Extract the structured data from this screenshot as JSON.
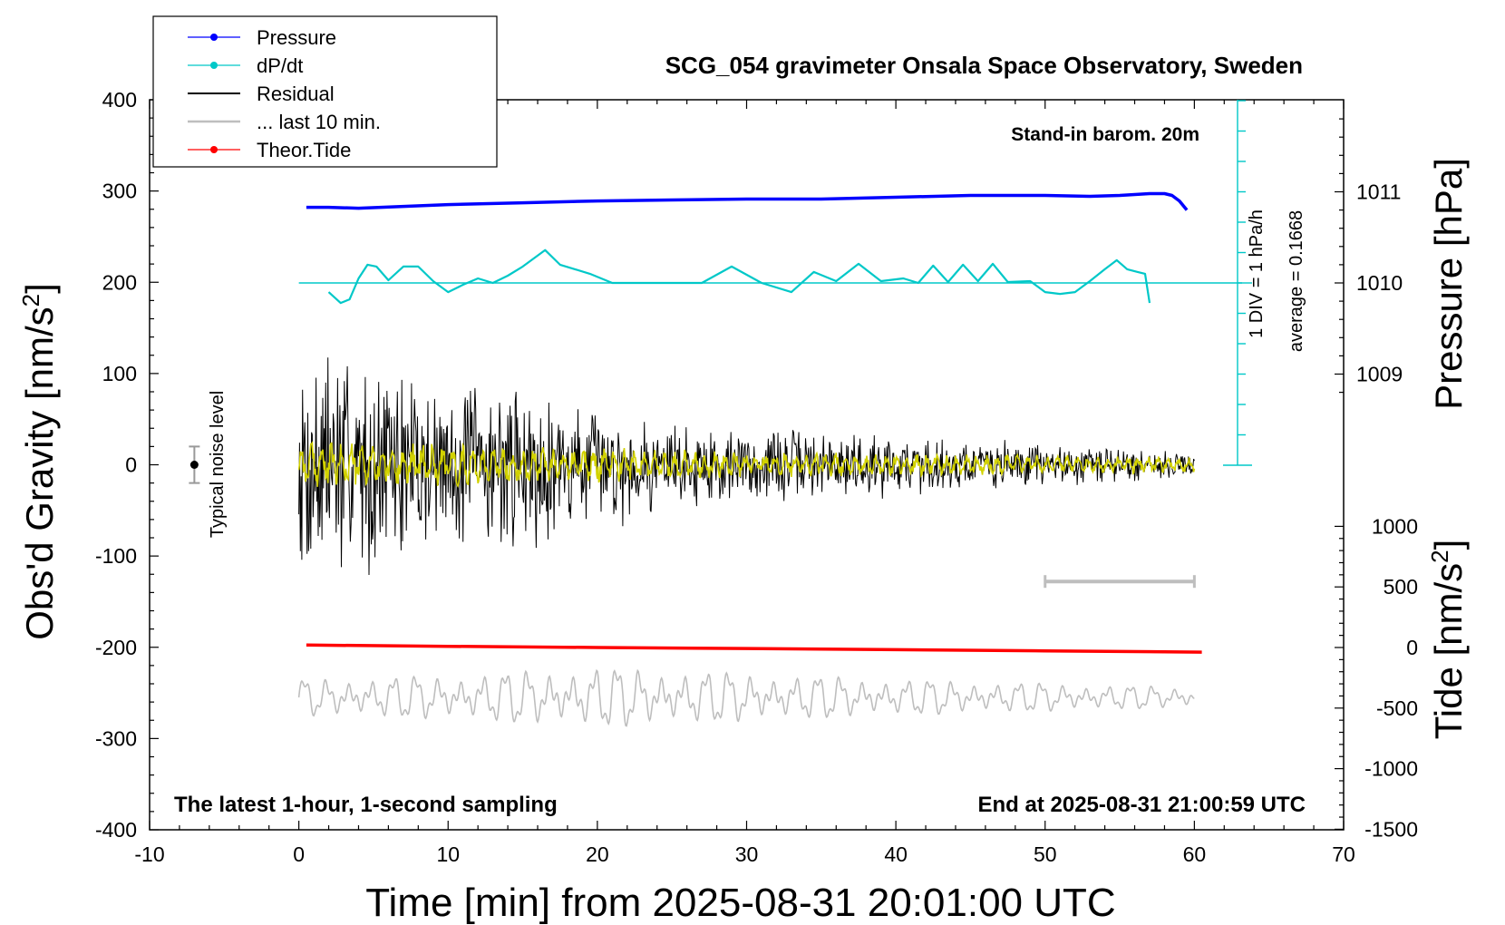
{
  "chart_data": {
    "type": "line",
    "title": "SCG_054 gravimeter Onsala Space Observatory, Sweden",
    "xlabel": "Time [min] from 2025-08-31 20:01:00 UTC",
    "ylabel_main": "Obs'd Gravity [nm/s",
    "ylabel_pressure": "Pressure [hPa]",
    "ylabel_tide": "Tide [nm/s",
    "unit_superscript": "2",
    "xlim": [
      -10,
      70
    ],
    "ylim": [
      -400,
      400
    ],
    "x_ticks": [
      "-10",
      "0",
      "10",
      "20",
      "30",
      "40",
      "50",
      "60",
      "70"
    ],
    "y_ticks": [
      "-400",
      "-300",
      "-200",
      "-100",
      "0",
      "100",
      "200",
      "300",
      "400"
    ],
    "pressure_ticks": [
      {
        "label": "1009",
        "value": 1009
      },
      {
        "label": "1010",
        "value": 1010
      },
      {
        "label": "1011",
        "value": 1011
      }
    ],
    "tide_ticks": [
      {
        "label": "1000",
        "value": 1000
      },
      {
        "label": "500",
        "value": 500
      },
      {
        "label": "0",
        "value": 0
      },
      {
        "label": "-500",
        "value": -500
      },
      {
        "label": "-1000",
        "value": -1000
      },
      {
        "label": "-1500",
        "value": -1500
      }
    ],
    "annotations": {
      "stand_in": "Stand-in barom. 20m",
      "div_label": "1 DIV = 1 hPa/h",
      "average_label": "average = 0.1668",
      "noise_label": "Typical noise level",
      "bottom_left": "The latest 1-hour, 1-second sampling",
      "bottom_right": "End at 2025-08-31 21:00:59 UTC"
    },
    "legend_position": "top-left",
    "legend": [
      {
        "name": "Pressure",
        "color": "#0000ff",
        "marker": true
      },
      {
        "name": "dP/dt",
        "color": "#00c8c8",
        "marker": true
      },
      {
        "name": "Residual",
        "color": "#000000",
        "marker": false
      },
      {
        "name": "... last 10 min.",
        "color": "#bebebe",
        "marker": false
      },
      {
        "name": "Theor.Tide",
        "color": "#ff0000",
        "marker": true
      }
    ],
    "series": [
      {
        "name": "Pressure",
        "color": "#0000ff",
        "axis": "pressure_hPa",
        "x": [
          0.5,
          2,
          4,
          7,
          10,
          15,
          20,
          25,
          30,
          35,
          40,
          45,
          48,
          50,
          53,
          55,
          57,
          58,
          58.5,
          59,
          59.5
        ],
        "values": [
          1010.83,
          1010.83,
          1010.82,
          1010.84,
          1010.86,
          1010.88,
          1010.9,
          1010.91,
          1010.92,
          1010.92,
          1010.94,
          1010.96,
          1010.96,
          1010.96,
          1010.95,
          1010.96,
          1010.98,
          1010.98,
          1010.96,
          1010.9,
          1010.8
        ]
      },
      {
        "name": "dP/dt",
        "color": "#00c8c8",
        "axis": "dPdt_hPa_per_h",
        "baseline": 1010.0,
        "x": [
          2,
          2.8,
          3.4,
          4,
          4.6,
          5.2,
          6,
          7,
          8,
          9,
          10,
          11,
          12,
          13,
          14,
          15,
          16.5,
          17.5,
          18.5,
          19.5,
          21,
          23,
          25,
          27,
          29,
          31,
          33,
          34.5,
          36,
          37.5,
          39,
          40.5,
          41.5,
          42.5,
          43.5,
          44.5,
          45.5,
          46.5,
          47.5,
          49,
          50,
          51,
          52,
          53,
          54,
          54.8,
          55.5,
          56.2,
          56.7,
          57
        ],
        "values": [
          -0.1,
          -0.22,
          -0.18,
          0.05,
          0.2,
          0.18,
          0.03,
          0.18,
          0.18,
          0.02,
          -0.1,
          -0.02,
          0.05,
          0.0,
          0.08,
          0.18,
          0.36,
          0.2,
          0.15,
          0.1,
          0.0,
          0.0,
          0.0,
          0.0,
          0.18,
          0.0,
          -0.1,
          0.12,
          0.02,
          0.21,
          0.02,
          0.05,
          0.0,
          0.19,
          0.01,
          0.2,
          0.02,
          0.21,
          0.01,
          0.02,
          -0.1,
          -0.12,
          -0.1,
          0.02,
          0.15,
          0.25,
          0.15,
          0.12,
          0.1,
          -0.22
        ]
      },
      {
        "name": "Residual",
        "color": "#000000",
        "axis": "gravity_nm_s2",
        "x": [
          0,
          1,
          2,
          3,
          4,
          5,
          6,
          7,
          8,
          9,
          10,
          11,
          12,
          13,
          14,
          15,
          16,
          17,
          18,
          19,
          20,
          21,
          22,
          23,
          24,
          25,
          26,
          27,
          28,
          29,
          30,
          31,
          32,
          33,
          34,
          35,
          36,
          37,
          38,
          39,
          40,
          41,
          42,
          43,
          44,
          45,
          46,
          47,
          48,
          49,
          50,
          51,
          52,
          53,
          54,
          55,
          56,
          57,
          58,
          59,
          60
        ],
        "amplitude": [
          110,
          170,
          160,
          150,
          120,
          125,
          130,
          120,
          120,
          110,
          100,
          110,
          95,
          100,
          110,
          90,
          100,
          90,
          80,
          75,
          70,
          65,
          70,
          60,
          55,
          60,
          55,
          50,
          55,
          50,
          50,
          45,
          48,
          45,
          45,
          42,
          42,
          45,
          42,
          38,
          35,
          40,
          38,
          35,
          35,
          32,
          30,
          30,
          28,
          28,
          26,
          25,
          25,
          24,
          23,
          22,
          22,
          20,
          18,
          17,
          16
        ]
      },
      {
        "name": "Residual (filtered)",
        "color": "#d2d200",
        "axis": "gravity_nm_s2",
        "x": [
          0,
          10,
          20,
          30,
          40,
          50,
          60
        ],
        "amplitude": [
          25,
          22,
          18,
          14,
          12,
          10,
          8
        ]
      },
      {
        "name": "... last 10 min.",
        "color": "#bebebe",
        "axis": "gravity_nm_s2",
        "offset": -255,
        "x": [
          0,
          10,
          20,
          30,
          40,
          50,
          60
        ],
        "amplitude": [
          18,
          22,
          30,
          24,
          18,
          14,
          10
        ]
      },
      {
        "name": "Theor.Tide",
        "color": "#ff0000",
        "axis": "tide_nm_s2",
        "x": [
          0.5,
          10,
          20,
          30,
          40,
          50,
          60.5
        ],
        "values": [
          20,
          10,
          0,
          -8,
          -18,
          -28,
          -38
        ]
      }
    ],
    "noise_level": {
      "x": -7,
      "y": 0,
      "err": 20
    },
    "ten_min_marker": {
      "x_start": 50,
      "x_end": 60,
      "tide_value": 500
    }
  }
}
